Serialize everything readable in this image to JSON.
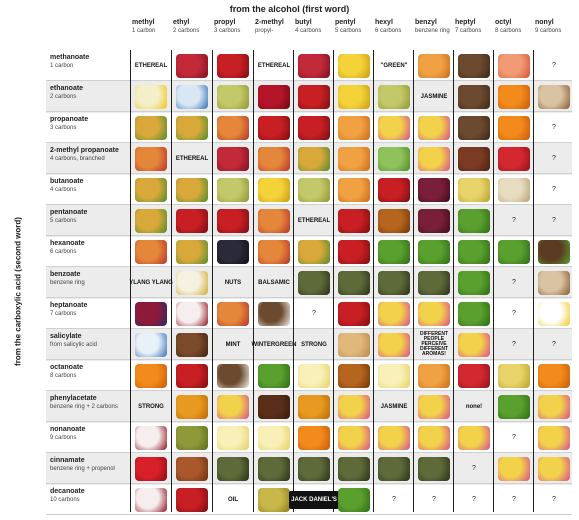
{
  "title_top": "from the alcohol (first word)",
  "title_side": "from the carboxylic acid (second word)",
  "columns": [
    {
      "name": "methyl",
      "sub": "1 carbon"
    },
    {
      "name": "ethyl",
      "sub": "2 carbons"
    },
    {
      "name": "propyl",
      "sub": "3 carbons"
    },
    {
      "name": "2-methyl",
      "sub": "propyl-"
    },
    {
      "name": "butyl",
      "sub": "4 carbons"
    },
    {
      "name": "pentyl",
      "sub": "5 carbons"
    },
    {
      "name": "hexyl",
      "sub": "6 carbons"
    },
    {
      "name": "benzyl",
      "sub": "benzene ring"
    },
    {
      "name": "heptyl",
      "sub": "7 carbons"
    },
    {
      "name": "octyl",
      "sub": "8 carbons"
    },
    {
      "name": "nonyl",
      "sub": "9 carbons"
    }
  ],
  "rows": [
    {
      "name": "methanoate",
      "sub": "1 carbon"
    },
    {
      "name": "ethanoate",
      "sub": "2 carbons"
    },
    {
      "name": "propanoate",
      "sub": "3 carbons"
    },
    {
      "name": "2-methyl propanoate",
      "sub": "4 carbons, branched"
    },
    {
      "name": "butanoate",
      "sub": "4 carbons"
    },
    {
      "name": "pentanoate",
      "sub": "5 carbons"
    },
    {
      "name": "hexanoate",
      "sub": "6 carbons"
    },
    {
      "name": "benzoate",
      "sub": "benzene ring"
    },
    {
      "name": "heptanoate",
      "sub": "7 carbons"
    },
    {
      "name": "salicylate",
      "sub": "from salicylic acid"
    },
    {
      "name": "octanoate",
      "sub": "8 carbons"
    },
    {
      "name": "phenylacetate",
      "sub": "benzene ring + 2 carbons"
    },
    {
      "name": "nonanoate",
      "sub": "9 carbons"
    },
    {
      "name": "cinnamate",
      "sub": "benzene ring + propenol"
    },
    {
      "name": "decanoate",
      "sub": "10 carbons"
    }
  ],
  "grid": [
    [
      "ETHEREAL",
      "img:raspberry",
      "img:apple",
      "ETHEREAL",
      "img:raspberry",
      "img:banana",
      "\"GREEN\"",
      "img:apricot",
      "img:wood",
      "img:peach",
      "?"
    ],
    [
      "img:glue",
      "img:glue2",
      "img:pear",
      "img:cherry",
      "img:apple",
      "img:banana",
      "img:pear",
      "JASMINE",
      "img:wood",
      "img:orange",
      "img:mushroom"
    ],
    [
      "img:pineapple",
      "img:pineapple",
      "img:mixedfruit",
      "img:apple",
      "img:apple",
      "img:apricot",
      "img:flowers",
      "img:flowers",
      "img:wood",
      "img:orange",
      "?"
    ],
    [
      "img:mixedfruit",
      "ETHEREAL",
      "img:raspberry",
      "img:mixedfruit",
      "img:pineapple",
      "img:apricot",
      "img:grass",
      "img:flowers",
      "img:cocoa",
      "img:candle",
      "?"
    ],
    [
      "img:pineapple",
      "img:pineapple",
      "img:pear",
      "img:banana",
      "img:pear",
      "img:apricot",
      "img:apple",
      "img:plum",
      "img:oil",
      "img:parsnip",
      "?"
    ],
    [
      "img:pineapple",
      "img:apple",
      "img:apple",
      "img:mixedfruit",
      "ETHEREAL",
      "img:apple",
      "img:cognac",
      "img:plum",
      "img:leaf",
      "?",
      "?"
    ],
    [
      "img:mixedfruit",
      "img:pineapple",
      "img:blackberry",
      "img:mixedfruit",
      "img:pineapple",
      "img:apple",
      "img:leaf",
      "img:leaf",
      "img:leaf",
      "img:leaf",
      "img:leafsoil"
    ],
    [
      "YLANG YLANG",
      "img:star",
      "NUTS",
      "BALSAMIC",
      "img:balsamic",
      "img:balsamic",
      "img:balsamic",
      "img:balsamic",
      "img:leaf",
      "?",
      "img:mushroom"
    ],
    [
      "img:berries",
      "img:wine",
      "img:mixedfruit",
      "img:coconut",
      "?",
      "img:apple",
      "img:flowers",
      "img:flowers",
      "img:leaf",
      "?",
      "img:smiley"
    ],
    [
      "img:toothpaste",
      "img:anise",
      "MINT",
      "WINTERGREEN",
      "STRONG",
      "img:cake",
      "img:flowers",
      "DIFFERENT PEOPLE PERCEIVE DIFFERENT AROMAS!",
      "img:flowers",
      "?",
      "?"
    ],
    [
      "img:orange",
      "img:apple",
      "img:coconut",
      "img:leaf",
      "img:butter",
      "img:cognac",
      "img:butter",
      "img:apricot",
      "img:candle",
      "img:oil",
      "img:orange"
    ],
    [
      "STRONG",
      "img:honey",
      "img:flowers",
      "img:chocolate",
      "img:honey",
      "img:flowers",
      "JASMINE",
      "img:flowers",
      "none!",
      "img:leaf",
      "img:flowers"
    ],
    [
      "img:wine",
      "img:grapes",
      "img:butter",
      "img:butter",
      "img:orange",
      "img:flowers",
      "img:flowers",
      "img:flowers",
      "img:flowers",
      "?",
      "img:flowers"
    ],
    [
      "img:strawberry",
      "img:cinnamon",
      "img:balsamic",
      "img:balsamic",
      "img:balsamic",
      "img:balsamic",
      "img:balsamic",
      "img:balsamic",
      "?",
      "img:flowers",
      "img:flowers"
    ],
    [
      "img:wine",
      "img:apple",
      "OIL",
      "img:oilbottle",
      "JACK DANIEL'S",
      "img:leaf",
      "?",
      "?",
      "?",
      "?",
      "?"
    ]
  ],
  "images": {
    "raspberry": {
      "icon": "raspberry-icon",
      "bg": "#c22a3a",
      "fg": "#7d1020"
    },
    "apple": {
      "icon": "apple-icon",
      "bg": "#c71f24",
      "fg": "#7a0d10"
    },
    "banana": {
      "icon": "banana-icon",
      "bg": "#f4d23a",
      "fg": "#c99b10"
    },
    "apricot": {
      "icon": "apricot-icon",
      "bg": "#f0a243",
      "fg": "#c96a1b"
    },
    "wood": {
      "icon": "wood-log-icon",
      "bg": "#6b4a2f",
      "fg": "#3e2716"
    },
    "peach": {
      "icon": "peach-icon",
      "bg": "#f19a74",
      "fg": "#d3533a"
    },
    "glue": {
      "icon": "glue-bottle-icon",
      "bg": "#f3f0c9",
      "fg": "#f0c419"
    },
    "glue2": {
      "icon": "glue-tube-icon",
      "bg": "#d9e7f4",
      "fg": "#2f6fb4"
    },
    "pear": {
      "icon": "pear-icon",
      "bg": "#c3c86a",
      "fg": "#8e9530"
    },
    "cherry": {
      "icon": "cherry-icon",
      "bg": "#b51528",
      "fg": "#6d0a16"
    },
    "orange": {
      "icon": "orange-icon",
      "bg": "#f28a1c",
      "fg": "#c75a08"
    },
    "mushroom": {
      "icon": "mushroom-icon",
      "bg": "#d9c3a3",
      "fg": "#8a5a32"
    },
    "pineapple": {
      "icon": "pineapple-icon",
      "bg": "#d9a83a",
      "fg": "#4f8b2c"
    },
    "mixedfruit": {
      "icon": "mixed-fruit-icon",
      "bg": "#e4873a",
      "fg": "#b8322a"
    },
    "flowers": {
      "icon": "flowers-icon",
      "bg": "#f2d24a",
      "fg": "#d94b8b"
    },
    "grass": {
      "icon": "grass-icon",
      "bg": "#8fc25a",
      "fg": "#4d8a26"
    },
    "cocoa": {
      "icon": "cocoa-pod-icon",
      "bg": "#7a3b22",
      "fg": "#4a2212"
    },
    "candle": {
      "icon": "candle-icon",
      "bg": "#d42830",
      "fg": "#8e1218"
    },
    "plum": {
      "icon": "plum-icon",
      "bg": "#7a1f3a",
      "fg": "#3e0c1e"
    },
    "oil": {
      "icon": "oil-jar-icon",
      "bg": "#e8d36a",
      "fg": "#b8a12a"
    },
    "parsnip": {
      "icon": "parsnip-icon",
      "bg": "#e8dcc0",
      "fg": "#b8a070"
    },
    "cognac": {
      "icon": "cognac-bottle-icon",
      "bg": "#b5651d",
      "fg": "#6e3508"
    },
    "leaf": {
      "icon": "leaf-icon",
      "bg": "#5aa02f",
      "fg": "#2e6a14"
    },
    "blackberry": {
      "icon": "blackberry-icon",
      "bg": "#2a2a3a",
      "fg": "#111"
    },
    "leafsoil": {
      "icon": "leaf-soil-icon",
      "bg": "#5a3b22",
      "fg": "#5aa02f"
    },
    "star": {
      "icon": "star-anise-icon",
      "bg": "#f5f0e0",
      "fg": "#d4a82a"
    },
    "balsamic": {
      "icon": "balsamic-bottles-icon",
      "bg": "#5f6a3a",
      "fg": "#2a3017"
    },
    "berries": {
      "icon": "berries-icon",
      "bg": "#8e1a3a",
      "fg": "#2a2a6a"
    },
    "wine": {
      "icon": "wine-glass-icon",
      "bg": "#f6eeee",
      "fg": "#8e1020"
    },
    "coconut": {
      "icon": "coconut-icon",
      "bg": "#6b4a2f",
      "fg": "#f4f0e8"
    },
    "toothpaste": {
      "icon": "toothpaste-icon",
      "bg": "#e8f0f8",
      "fg": "#2f6fb4"
    },
    "anise": {
      "icon": "anise-icon",
      "bg": "#7a4a2a",
      "fg": "#3e2412"
    },
    "cake": {
      "icon": "cake-icon",
      "bg": "#e0b87a",
      "fg": "#b8884a"
    },
    "butter": {
      "icon": "butter-icon",
      "bg": "#f8f0b8",
      "fg": "#e8d060"
    },
    "honey": {
      "icon": "honey-icon",
      "bg": "#e89a20",
      "fg": "#b86a08"
    },
    "chocolate": {
      "icon": "chocolate-icon",
      "bg": "#5a2e18",
      "fg": "#3a1a0a"
    },
    "grapes": {
      "icon": "grapes-icon",
      "bg": "#8e9a3a",
      "fg": "#5a6a1a"
    },
    "strawberry": {
      "icon": "strawberry-icon",
      "bg": "#d8202a",
      "fg": "#8e0a14"
    },
    "cinnamon": {
      "icon": "cinnamon-icon",
      "bg": "#a8582a",
      "fg": "#6a3010"
    },
    "oilbottle": {
      "icon": "oil-bottle-icon",
      "bg": "#c8b84a",
      "fg": "#8a7a18"
    },
    "smiley": {
      "icon": "smiley-icon",
      "bg": "#ffffff",
      "fg": "#f0c820"
    }
  }
}
